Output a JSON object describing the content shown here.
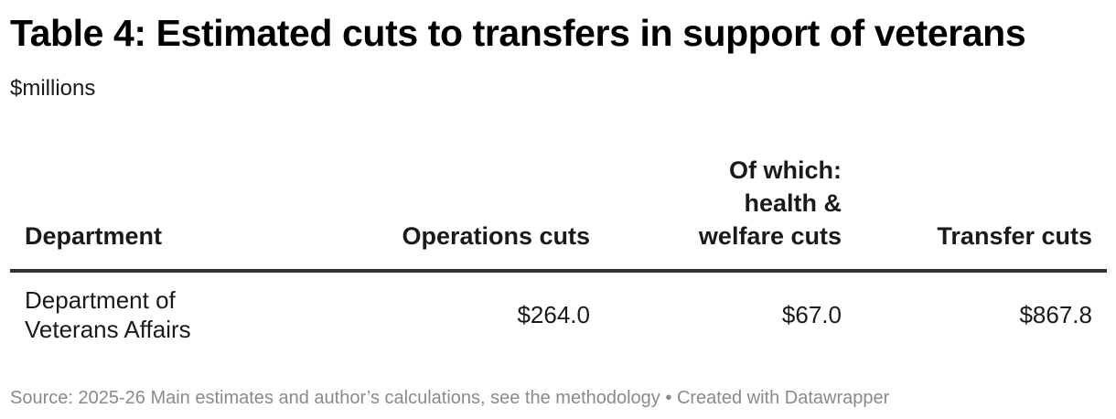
{
  "title": "Table 4: Estimated cuts to transfers in support of veterans",
  "subtitle": "$millions",
  "columns": {
    "department": "Department",
    "operations": "Operations cuts",
    "health": "Of which:\nhealth &\nwelfare cuts",
    "transfer": "Transfer cuts"
  },
  "rows": [
    {
      "department": "Department of Veterans Affairs",
      "operations": "$264.0",
      "health": "$67.0",
      "transfer": "$867.8"
    }
  ],
  "footer": {
    "source": "Source: 2025-26 Main estimates and author’s calculations, see the methodology",
    "separator": " • ",
    "credit": "Created with Datawrapper"
  },
  "chart_data": {
    "type": "table",
    "columns": [
      "Department",
      "Operations cuts",
      "Of which: health & welfare cuts",
      "Transfer cuts"
    ],
    "rows": [
      [
        "Department of Veterans Affairs",
        264.0,
        67.0,
        867.8
      ]
    ],
    "title": "Table 4: Estimated cuts to transfers in support of veterans",
    "subtitle": "$millions"
  }
}
